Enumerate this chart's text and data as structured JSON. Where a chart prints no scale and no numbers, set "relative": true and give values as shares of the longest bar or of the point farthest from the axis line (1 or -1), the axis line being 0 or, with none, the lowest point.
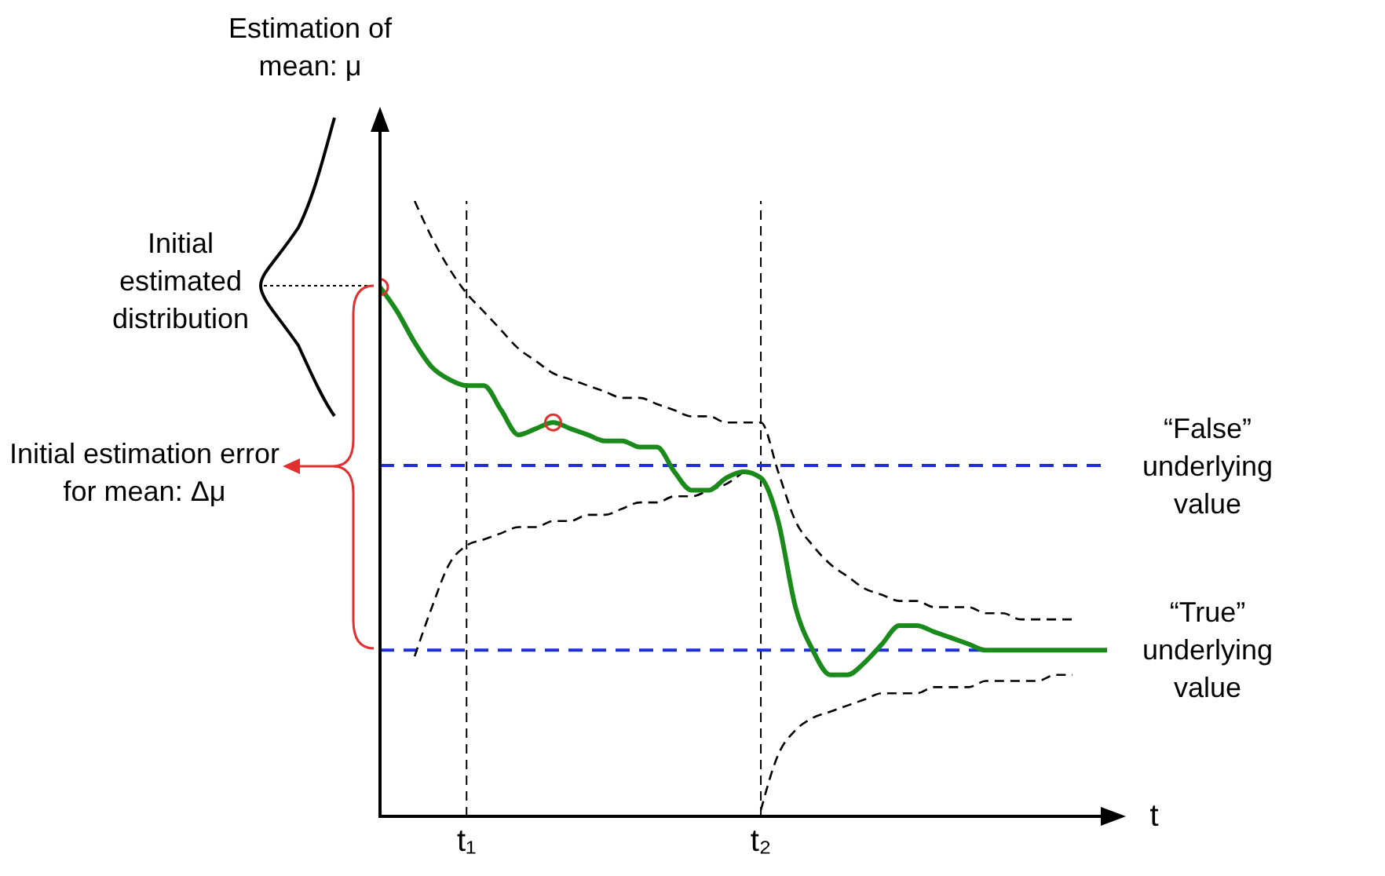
{
  "chart_data": {
    "type": "line",
    "relative": true,
    "ylabel": "Estimation of mean: μ",
    "xlabel": "t",
    "marker": "none",
    "legend": false,
    "categories": [
      null,
      null,
      null,
      null,
      null,
      "t₁",
      null,
      null,
      null,
      null,
      null,
      null,
      null,
      null,
      null,
      null,
      null,
      null,
      null,
      null,
      null,
      null,
      "t₂",
      null,
      null,
      null,
      null,
      null,
      null,
      null,
      null,
      null,
      null,
      null,
      null,
      null,
      null,
      null,
      null,
      null,
      null,
      null,
      null
    ],
    "series": [
      {
        "color": "#000000",
        "line_style": "dashed",
        "values": [
          null,
          null,
          1.0,
          0.94,
          0.89,
          0.85,
          0.82,
          0.79,
          0.76,
          0.74,
          0.72,
          0.71,
          0.7,
          0.69,
          0.68,
          0.68,
          0.67,
          0.66,
          0.65,
          0.65,
          0.64,
          0.64,
          0.64,
          0.56,
          0.48,
          0.44,
          0.41,
          0.39,
          0.37,
          0.36,
          0.35,
          0.35,
          0.34,
          0.34,
          0.34,
          0.33,
          0.33,
          0.32,
          0.32,
          0.32,
          0.32,
          null,
          null
        ]
      },
      {
        "color": "#000000",
        "line_style": "dashed",
        "values": [
          null,
          null,
          0.26,
          0.34,
          0.41,
          0.44,
          0.45,
          0.46,
          0.47,
          0.47,
          0.48,
          0.48,
          0.49,
          0.49,
          0.5,
          0.51,
          0.51,
          0.52,
          0.52,
          0.53,
          0.54,
          0.56,
          null,
          null,
          null,
          null,
          null,
          null,
          null,
          null,
          null,
          null,
          null,
          null,
          null,
          null,
          null,
          null,
          null,
          null,
          null,
          null,
          null
        ]
      },
      {
        "color": "#000000",
        "line_style": "dashed",
        "values": [
          null,
          null,
          null,
          null,
          null,
          null,
          null,
          null,
          null,
          null,
          null,
          null,
          null,
          null,
          null,
          null,
          null,
          null,
          null,
          null,
          null,
          null,
          0.01,
          0.1,
          0.14,
          0.16,
          0.17,
          0.18,
          0.19,
          0.2,
          0.2,
          0.2,
          0.21,
          0.21,
          0.21,
          0.22,
          0.22,
          0.22,
          0.22,
          0.23,
          0.23,
          null,
          null
        ]
      },
      {
        "color": "#1a8a1a",
        "line_style": "solid",
        "values": [
          0.86,
          0.82,
          0.77,
          0.73,
          0.71,
          0.7,
          0.7,
          0.66,
          0.62,
          0.63,
          0.64,
          0.63,
          0.62,
          0.61,
          0.61,
          0.6,
          0.6,
          0.56,
          0.53,
          0.53,
          0.55,
          0.56,
          0.55,
          0.48,
          0.34,
          0.27,
          0.23,
          0.23,
          0.25,
          0.28,
          0.31,
          0.31,
          0.3,
          0.29,
          0.28,
          0.27,
          0.27,
          0.27,
          0.27,
          0.27,
          0.27,
          0.27,
          0.27
        ]
      },
      {
        "type": "scatter",
        "color": "#e03030",
        "marker": "circle",
        "values": [
          0.86,
          null,
          null,
          null,
          null,
          null,
          null,
          null,
          null,
          null,
          0.64,
          null,
          null,
          null,
          null,
          null,
          null,
          null,
          null,
          null,
          null,
          null,
          null,
          null,
          null,
          null,
          null,
          null,
          null,
          null,
          null,
          null,
          null,
          null,
          null,
          null,
          null,
          null,
          null,
          null,
          null,
          null,
          null
        ]
      }
    ],
    "ref_lines": [
      {
        "axis": "x",
        "value": "t₁",
        "color": "#000000",
        "line_style": "dashed"
      },
      {
        "axis": "x",
        "value": "t₂",
        "color": "#000000",
        "line_style": "dashed"
      },
      {
        "axis": "y",
        "value": 0.57,
        "label": "“False” underlying value",
        "color": "#1f2fd6",
        "line_style": "dashed"
      },
      {
        "axis": "y",
        "value": 0.27,
        "label": "“True” underlying value",
        "color": "#1f2fd6",
        "line_style": "dashed"
      }
    ],
    "annotations": [
      "Initial estimated distribution",
      "Initial estimation error for mean: Δμ"
    ]
  }
}
